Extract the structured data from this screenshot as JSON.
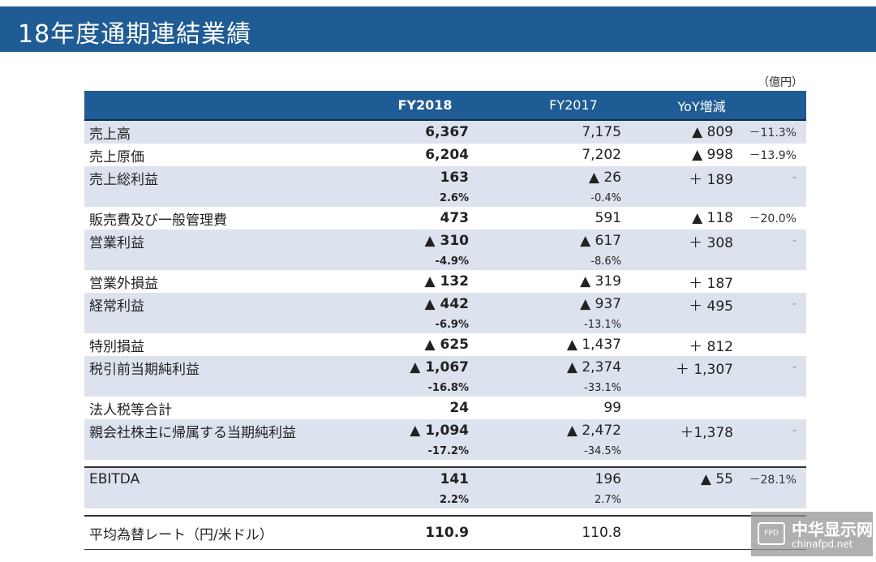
{
  "title": "18年度通期連結業績",
  "unit": "（億円）",
  "header": {
    "fy2018": "FY2018",
    "fy2017": "FY2017",
    "yoy": "YoY増減"
  },
  "rows": [
    {
      "label": "売上高",
      "fy2018": "6,367",
      "fy2017": "7,175",
      "yoy": "▲ 809",
      "pct": "－11.3%"
    },
    {
      "label": "売上原価",
      "fy2018": "6,204",
      "fy2017": "7,202",
      "yoy": "▲ 998",
      "pct": "－13.9%"
    },
    {
      "label": "売上総利益",
      "fy2018": "163",
      "fy2017": "▲ 26",
      "yoy": "＋ 189",
      "pct": "-",
      "sub2018": "2.6%",
      "sub2017": "-0.4%"
    },
    {
      "label": "販売費及び一般管理費",
      "fy2018": "473",
      "fy2017": "591",
      "yoy": "▲ 118",
      "pct": "－20.0%"
    },
    {
      "label": "営業利益",
      "fy2018": "▲ 310",
      "fy2017": "▲ 617",
      "yoy": "＋ 308",
      "pct": "-",
      "sub2018": "-4.9%",
      "sub2017": "-8.6%"
    },
    {
      "label": "営業外損益",
      "fy2018": "▲ 132",
      "fy2017": "▲ 319",
      "yoy": "＋ 187",
      "pct": ""
    },
    {
      "label": "経常利益",
      "fy2018": "▲ 442",
      "fy2017": "▲ 937",
      "yoy": "＋ 495",
      "pct": "-",
      "sub2018": "-6.9%",
      "sub2017": "-13.1%"
    },
    {
      "label": "特別損益",
      "fy2018": "▲ 625",
      "fy2017": "▲ 1,437",
      "yoy": "＋ 812",
      "pct": ""
    },
    {
      "label": "税引前当期純利益",
      "fy2018": "▲ 1,067",
      "fy2017": "▲ 2,374",
      "yoy": "＋ 1,307",
      "pct": "-",
      "sub2018": "-16.8%",
      "sub2017": "-33.1%"
    },
    {
      "label": "法人税等合計",
      "fy2018": "24",
      "fy2017": "99",
      "yoy": "",
      "pct": ""
    },
    {
      "label": "親会社株主に帰属する当期純利益",
      "fy2018": "▲ 1,094",
      "fy2017": "▲ 2,472",
      "yoy": "＋1,378",
      "pct": "-",
      "sub2018": "-17.2%",
      "sub2017": "-34.5%"
    }
  ],
  "ebitda": {
    "label": "EBITDA",
    "fy2018": "141",
    "fy2017": "196",
    "yoy": "▲ 55",
    "pct": "－28.1%",
    "sub2018": "2.2%",
    "sub2017": "2.7%"
  },
  "fx": {
    "label": "平均為替レート（円/米ドル）",
    "fy2018": "110.9",
    "fy2017": "110.8"
  },
  "watermark": {
    "box": "FPD",
    "main": "中华显示网",
    "sub": "chinafpd.net"
  }
}
